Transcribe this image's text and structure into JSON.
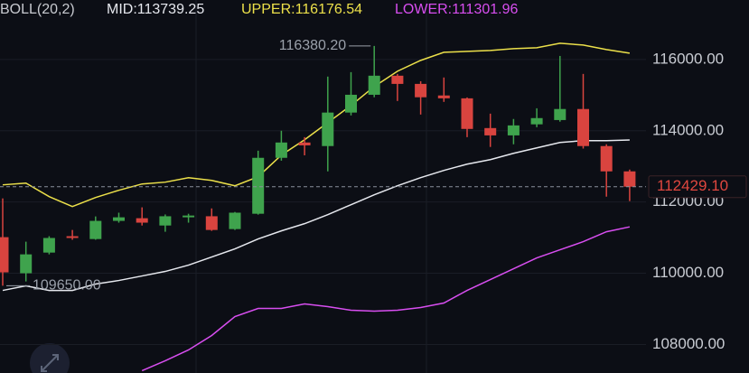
{
  "chart_data": {
    "type": "candlestick",
    "indicator": "BOLL(20,2)",
    "readouts": [
      "MID:113739.25",
      "UPPER:116176.54",
      "LOWER:111301.96"
    ],
    "ylim": [
      107200,
      117670
    ],
    "yticks": [
      {
        "value": 108000,
        "label": "108000.00"
      },
      {
        "value": 110000,
        "label": "110000.00"
      },
      {
        "value": 112000,
        "label": "112000.00"
      },
      {
        "value": 114000,
        "label": "114000.00"
      },
      {
        "value": 116000,
        "label": "116000.00"
      }
    ],
    "grid": true,
    "up_color": "#3fa34d",
    "down_color": "#d9443f",
    "open": [
      111013,
      110000,
      110580,
      111040,
      110960,
      111470,
      111545,
      111340,
      111570,
      111600,
      111240,
      111670,
      113240,
      113670,
      113570,
      114510,
      115010,
      115545,
      115315,
      114990,
      114910,
      114075,
      113870,
      114180,
      114300,
      114610,
      113570,
      112860
    ],
    "close": [
      110025,
      110530,
      110990,
      110990,
      111470,
      111570,
      111420,
      111600,
      111620,
      111215,
      111700,
      113240,
      113670,
      113590,
      114510,
      115010,
      115545,
      115315,
      114940,
      114910,
      114050,
      113870,
      114150,
      114355,
      114610,
      113570,
      112860,
      112429.1
    ],
    "high": [
      112101,
      110886,
      111040,
      111215,
      111595,
      111700,
      111850,
      111650,
      111670,
      111820,
      111720,
      113440,
      114000,
      113820,
      115520,
      115645,
      116380.2,
      115595,
      115390,
      115495,
      114935,
      114480,
      114330,
      114630,
      116100,
      115595,
      113620,
      112910
    ],
    "low": [
      109650,
      109770,
      110530,
      110940,
      110940,
      111420,
      111340,
      111165,
      111420,
      111190,
      111215,
      111645,
      113160,
      113310,
      112860,
      114430,
      114940,
      114835,
      114455,
      114810,
      113820,
      113545,
      113620,
      114100,
      114255,
      113500,
      112150,
      112025
    ],
    "series": [
      {
        "name": "UPPER",
        "color": "#ece04a",
        "values": [
          112481,
          112531,
          112151,
          111873,
          112126,
          112329,
          112506,
          112557,
          112683,
          112607,
          112455,
          112708,
          113316,
          113747,
          114228,
          114709,
          115240,
          115671,
          115975,
          116203,
          116228,
          116253,
          116304,
          116329,
          116456,
          116405,
          116279,
          116176.54
        ]
      },
      {
        "name": "MID",
        "color": "#e6e8ee",
        "values": [
          109518,
          109645,
          109518,
          109518,
          109696,
          109797,
          109924,
          110051,
          110228,
          110456,
          110684,
          110962,
          111190,
          111392,
          111645,
          111924,
          112202,
          112456,
          112684,
          112886,
          113063,
          113190,
          113367,
          113519,
          113671,
          113722,
          113722,
          113739.25
        ]
      },
      {
        "name": "LOWER",
        "color": "#d84ef0",
        "values": [
          null,
          null,
          null,
          null,
          null,
          null,
          107265,
          107544,
          107847,
          108252,
          108784,
          109012,
          109012,
          109138,
          109062,
          108961,
          108936,
          108961,
          109037,
          109164,
          109518,
          109822,
          110126,
          110430,
          110658,
          110886,
          111165,
          111301.96
        ]
      }
    ],
    "high_marker": {
      "value": 116380.2,
      "label": "116380.20"
    },
    "low_marker": {
      "value": 109650,
      "label": "109650.00"
    },
    "last_price": {
      "value": 112429.1,
      "label": "112429.10"
    }
  }
}
